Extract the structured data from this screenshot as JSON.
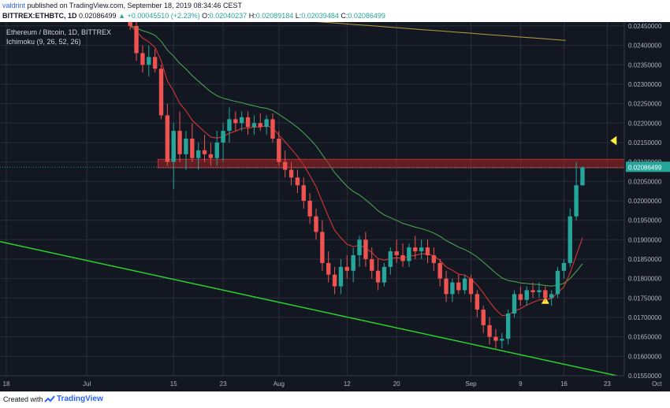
{
  "header": {
    "user": "valdrint",
    "published_text": "published on TradingView.com, September 18, 2019 08:34:46 CEST",
    "symbol": "BITTREX:ETHBTC, 1D",
    "last": "0.02086499",
    "change": "▲ +0.00045510 (+2.23%)",
    "ohlc_o_label": "O:",
    "ohlc_o": "0.02040237",
    "ohlc_h_label": "H:",
    "ohlc_h": "0.02089184",
    "ohlc_l_label": "L:",
    "ohlc_l": "0.02039484",
    "ohlc_c_label": "C:",
    "ohlc_c": "0.02086499"
  },
  "footer": {
    "created_with": "Created with",
    "brand": "TradingView"
  },
  "colors": {
    "background": "#131722",
    "grid": "#2a2e39",
    "up": "#26a69a",
    "down": "#ef5350",
    "tenkan": "#e53935",
    "kijun": "#4caf50",
    "senkou": "#b59f3b",
    "trendline": "#2bd42b",
    "resistance_zone": "#a02020",
    "marker": "#ffeb3b"
  },
  "chart_data": {
    "type": "candlestick",
    "title": "Ethereum / Bitcoin, 1D, BITTREX",
    "indicator": "Ichimoku (9, 26, 52, 26)",
    "x_ticks": [
      "18",
      "Jul",
      "15",
      "23",
      "Aug",
      "12",
      "20",
      "Sep",
      "9",
      "16",
      "23",
      "Oct"
    ],
    "y_ticks": [
      "0.02450000",
      "0.02400000",
      "0.02350000",
      "0.02300000",
      "0.02250000",
      "0.02200000",
      "0.02150000",
      "0.02100000",
      "0.02050000",
      "0.02000000",
      "0.01950000",
      "0.01900000",
      "0.01850000",
      "0.01800000",
      "0.01750000",
      "0.01700000",
      "0.01650000",
      "0.01600000",
      "0.01550000"
    ],
    "ylim": [
      0.0155,
      0.0246
    ],
    "last_price_label": "0.02086499",
    "resistance_zone": [
      0.02085,
      0.02107
    ],
    "candles": [
      {
        "date": "2019-07-08",
        "o": 0.02465,
        "h": 0.0248,
        "l": 0.0244,
        "c": 0.0245
      },
      {
        "date": "2019-07-09",
        "o": 0.0245,
        "h": 0.0246,
        "l": 0.0236,
        "c": 0.0238
      },
      {
        "date": "2019-07-10",
        "o": 0.0238,
        "h": 0.024,
        "l": 0.0233,
        "c": 0.0235
      },
      {
        "date": "2019-07-11",
        "o": 0.0235,
        "h": 0.024,
        "l": 0.0232,
        "c": 0.0237
      },
      {
        "date": "2019-07-12",
        "o": 0.0237,
        "h": 0.0239,
        "l": 0.0233,
        "c": 0.0234
      },
      {
        "date": "2019-07-13",
        "o": 0.0234,
        "h": 0.0235,
        "l": 0.0221,
        "c": 0.0222
      },
      {
        "date": "2019-07-14",
        "o": 0.0222,
        "h": 0.0225,
        "l": 0.0209,
        "c": 0.021
      },
      {
        "date": "2019-07-15",
        "o": 0.021,
        "h": 0.022,
        "l": 0.0203,
        "c": 0.0218
      },
      {
        "date": "2019-07-16",
        "o": 0.0218,
        "h": 0.0223,
        "l": 0.021,
        "c": 0.0212
      },
      {
        "date": "2019-07-17",
        "o": 0.0212,
        "h": 0.0218,
        "l": 0.0208,
        "c": 0.0216
      },
      {
        "date": "2019-07-18",
        "o": 0.0216,
        "h": 0.022,
        "l": 0.021,
        "c": 0.0211
      },
      {
        "date": "2019-07-19",
        "o": 0.0211,
        "h": 0.0215,
        "l": 0.0208,
        "c": 0.0213
      },
      {
        "date": "2019-07-20",
        "o": 0.0213,
        "h": 0.0217,
        "l": 0.021,
        "c": 0.0212
      },
      {
        "date": "2019-07-21",
        "o": 0.0212,
        "h": 0.0215,
        "l": 0.0209,
        "c": 0.0211
      },
      {
        "date": "2019-07-22",
        "o": 0.0211,
        "h": 0.0218,
        "l": 0.0209,
        "c": 0.0215
      },
      {
        "date": "2019-07-23",
        "o": 0.0215,
        "h": 0.022,
        "l": 0.021,
        "c": 0.0218
      },
      {
        "date": "2019-07-24",
        "o": 0.0218,
        "h": 0.0224,
        "l": 0.0215,
        "c": 0.0221
      },
      {
        "date": "2019-07-25",
        "o": 0.0221,
        "h": 0.0223,
        "l": 0.0218,
        "c": 0.022
      },
      {
        "date": "2019-07-26",
        "o": 0.022,
        "h": 0.0223,
        "l": 0.0218,
        "c": 0.02215
      },
      {
        "date": "2019-07-27",
        "o": 0.02215,
        "h": 0.0223,
        "l": 0.0217,
        "c": 0.0219
      },
      {
        "date": "2019-07-28",
        "o": 0.0219,
        "h": 0.0222,
        "l": 0.0217,
        "c": 0.022
      },
      {
        "date": "2019-07-29",
        "o": 0.022,
        "h": 0.02225,
        "l": 0.0218,
        "c": 0.0219
      },
      {
        "date": "2019-07-30",
        "o": 0.0219,
        "h": 0.0222,
        "l": 0.0217,
        "c": 0.0221
      },
      {
        "date": "2019-07-31",
        "o": 0.0221,
        "h": 0.02225,
        "l": 0.0215,
        "c": 0.0216
      },
      {
        "date": "2019-08-01",
        "o": 0.0216,
        "h": 0.0218,
        "l": 0.0209,
        "c": 0.021
      },
      {
        "date": "2019-08-02",
        "o": 0.021,
        "h": 0.0213,
        "l": 0.0206,
        "c": 0.0208
      },
      {
        "date": "2019-08-03",
        "o": 0.0208,
        "h": 0.021,
        "l": 0.0204,
        "c": 0.0206
      },
      {
        "date": "2019-08-04",
        "o": 0.0206,
        "h": 0.0208,
        "l": 0.0202,
        "c": 0.0204
      },
      {
        "date": "2019-08-05",
        "o": 0.0204,
        "h": 0.0206,
        "l": 0.0198,
        "c": 0.02
      },
      {
        "date": "2019-08-06",
        "o": 0.02,
        "h": 0.0202,
        "l": 0.0194,
        "c": 0.0196
      },
      {
        "date": "2019-08-07",
        "o": 0.0196,
        "h": 0.0198,
        "l": 0.019,
        "c": 0.0192
      },
      {
        "date": "2019-08-08",
        "o": 0.0192,
        "h": 0.0195,
        "l": 0.0182,
        "c": 0.0184
      },
      {
        "date": "2019-08-09",
        "o": 0.0184,
        "h": 0.0187,
        "l": 0.0179,
        "c": 0.0181
      },
      {
        "date": "2019-08-10",
        "o": 0.0181,
        "h": 0.0183,
        "l": 0.0176,
        "c": 0.0178
      },
      {
        "date": "2019-08-11",
        "o": 0.0178,
        "h": 0.0185,
        "l": 0.0176,
        "c": 0.0183
      },
      {
        "date": "2019-08-12",
        "o": 0.0183,
        "h": 0.0186,
        "l": 0.018,
        "c": 0.0182
      },
      {
        "date": "2019-08-13",
        "o": 0.0182,
        "h": 0.0188,
        "l": 0.0179,
        "c": 0.0186
      },
      {
        "date": "2019-08-14",
        "o": 0.0186,
        "h": 0.0191,
        "l": 0.0183,
        "c": 0.019
      },
      {
        "date": "2019-08-15",
        "o": 0.019,
        "h": 0.0192,
        "l": 0.0183,
        "c": 0.0185
      },
      {
        "date": "2019-08-16",
        "o": 0.0185,
        "h": 0.0188,
        "l": 0.018,
        "c": 0.0182
      },
      {
        "date": "2019-08-17",
        "o": 0.0182,
        "h": 0.0185,
        "l": 0.0177,
        "c": 0.0179
      },
      {
        "date": "2019-08-18",
        "o": 0.0179,
        "h": 0.0184,
        "l": 0.0178,
        "c": 0.0183
      },
      {
        "date": "2019-08-19",
        "o": 0.0183,
        "h": 0.0188,
        "l": 0.0181,
        "c": 0.0187
      },
      {
        "date": "2019-08-20",
        "o": 0.0187,
        "h": 0.019,
        "l": 0.0184,
        "c": 0.0186
      },
      {
        "date": "2019-08-21",
        "o": 0.0186,
        "h": 0.0189,
        "l": 0.0183,
        "c": 0.01845
      },
      {
        "date": "2019-08-22",
        "o": 0.01845,
        "h": 0.0189,
        "l": 0.0183,
        "c": 0.0188
      },
      {
        "date": "2019-08-23",
        "o": 0.0188,
        "h": 0.0191,
        "l": 0.0185,
        "c": 0.0187
      },
      {
        "date": "2019-08-24",
        "o": 0.0187,
        "h": 0.019,
        "l": 0.0185,
        "c": 0.0188
      },
      {
        "date": "2019-08-25",
        "o": 0.0188,
        "h": 0.019,
        "l": 0.0184,
        "c": 0.0186
      },
      {
        "date": "2019-08-26",
        "o": 0.0186,
        "h": 0.0188,
        "l": 0.0182,
        "c": 0.0184
      },
      {
        "date": "2019-08-27",
        "o": 0.0184,
        "h": 0.0185,
        "l": 0.0178,
        "c": 0.018
      },
      {
        "date": "2019-08-28",
        "o": 0.018,
        "h": 0.0182,
        "l": 0.0174,
        "c": 0.0176
      },
      {
        "date": "2019-08-29",
        "o": 0.0176,
        "h": 0.018,
        "l": 0.0174,
        "c": 0.0179
      },
      {
        "date": "2019-08-30",
        "o": 0.0179,
        "h": 0.0181,
        "l": 0.0176,
        "c": 0.0177
      },
      {
        "date": "2019-08-31",
        "o": 0.0177,
        "h": 0.0181,
        "l": 0.0176,
        "c": 0.018
      },
      {
        "date": "2019-09-01",
        "o": 0.018,
        "h": 0.0181,
        "l": 0.0174,
        "c": 0.0176
      },
      {
        "date": "2019-09-02",
        "o": 0.0176,
        "h": 0.0177,
        "l": 0.017,
        "c": 0.0172
      },
      {
        "date": "2019-09-03",
        "o": 0.0172,
        "h": 0.0173,
        "l": 0.0166,
        "c": 0.0168
      },
      {
        "date": "2019-09-04",
        "o": 0.0168,
        "h": 0.017,
        "l": 0.0163,
        "c": 0.0165
      },
      {
        "date": "2019-09-05",
        "o": 0.0165,
        "h": 0.0167,
        "l": 0.0162,
        "c": 0.0164
      },
      {
        "date": "2019-09-06",
        "o": 0.0164,
        "h": 0.0166,
        "l": 0.0162,
        "c": 0.01645
      },
      {
        "date": "2019-09-07",
        "o": 0.01645,
        "h": 0.0172,
        "l": 0.0163,
        "c": 0.0171
      },
      {
        "date": "2019-09-08",
        "o": 0.0171,
        "h": 0.0177,
        "l": 0.017,
        "c": 0.0176
      },
      {
        "date": "2019-09-09",
        "o": 0.0176,
        "h": 0.0178,
        "l": 0.0173,
        "c": 0.01745
      },
      {
        "date": "2019-09-10",
        "o": 0.01745,
        "h": 0.0178,
        "l": 0.0173,
        "c": 0.0177
      },
      {
        "date": "2019-09-11",
        "o": 0.0177,
        "h": 0.0179,
        "l": 0.0175,
        "c": 0.01765
      },
      {
        "date": "2019-09-12",
        "o": 0.01765,
        "h": 0.0179,
        "l": 0.0175,
        "c": 0.0177
      },
      {
        "date": "2019-09-13",
        "o": 0.0177,
        "h": 0.0178,
        "l": 0.0174,
        "c": 0.0175
      },
      {
        "date": "2019-09-14",
        "o": 0.0175,
        "h": 0.0177,
        "l": 0.0173,
        "c": 0.0176
      },
      {
        "date": "2019-09-15",
        "o": 0.0176,
        "h": 0.0183,
        "l": 0.0175,
        "c": 0.0182
      },
      {
        "date": "2019-09-16",
        "o": 0.0182,
        "h": 0.0185,
        "l": 0.018,
        "c": 0.0184
      },
      {
        "date": "2019-09-17",
        "o": 0.0184,
        "h": 0.0198,
        "l": 0.0183,
        "c": 0.0196
      },
      {
        "date": "2019-09-18",
        "o": 0.0196,
        "h": 0.021,
        "l": 0.0195,
        "c": 0.0204
      },
      {
        "date": "2019-09-19",
        "o": 0.0204,
        "h": 0.02089,
        "l": 0.02039,
        "c": 0.02086
      }
    ]
  }
}
